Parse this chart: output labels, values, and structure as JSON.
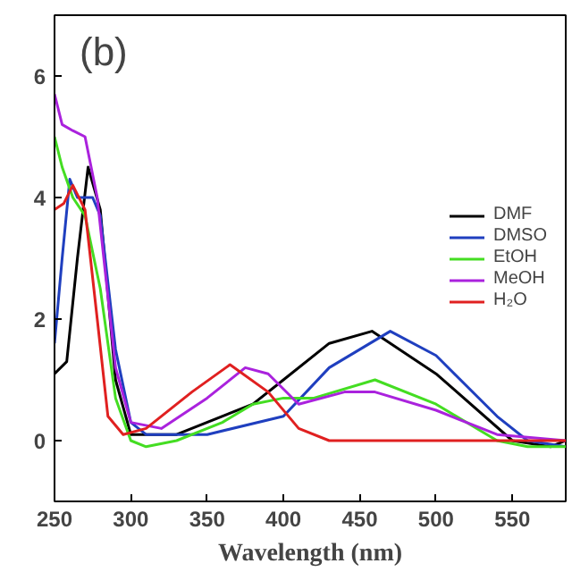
{
  "chart_data": {
    "type": "line",
    "xlabel": "Wavelength (nm)",
    "annotations": [
      "(b)"
    ],
    "xlim": [
      250,
      585
    ],
    "ylim": [
      -1,
      7
    ],
    "xticks": [
      250,
      300,
      350,
      400,
      450,
      500,
      550
    ],
    "yticks": [
      0,
      2,
      4,
      6
    ],
    "grid": false,
    "legend": "right",
    "series": [
      {
        "name": "DMF",
        "color": "#000000",
        "x": [
          250,
          258,
          265,
          272,
          280,
          290,
          300,
          330,
          380,
          400,
          430,
          458,
          500,
          550,
          575,
          585
        ],
        "values": [
          1.1,
          1.3,
          3.0,
          4.5,
          3.8,
          1.0,
          0.1,
          0.1,
          0.6,
          1.0,
          1.6,
          1.8,
          1.1,
          0.0,
          -0.1,
          0.0
        ]
      },
      {
        "name": "DMSO",
        "color": "#1f3fbf",
        "x": [
          250,
          255,
          260,
          265,
          275,
          280,
          290,
          300,
          310,
          350,
          400,
          430,
          470,
          500,
          540,
          560,
          585
        ],
        "values": [
          1.6,
          3.0,
          4.3,
          4.0,
          4.0,
          3.7,
          1.5,
          0.3,
          0.1,
          0.1,
          0.4,
          1.2,
          1.8,
          1.4,
          0.4,
          0.0,
          -0.1
        ]
      },
      {
        "name": "EtOH",
        "color": "#44dd22",
        "x": [
          250,
          255,
          262,
          270,
          280,
          290,
          300,
          310,
          330,
          360,
          380,
          400,
          420,
          460,
          500,
          540,
          560,
          585
        ],
        "values": [
          5.0,
          4.5,
          4.0,
          3.7,
          2.5,
          0.7,
          0.0,
          -0.1,
          0.0,
          0.3,
          0.6,
          0.7,
          0.7,
          1.0,
          0.6,
          0.0,
          -0.1,
          -0.1
        ]
      },
      {
        "name": "MeOH",
        "color": "#aa22dd",
        "x": [
          250,
          255,
          262,
          270,
          278,
          290,
          300,
          320,
          350,
          375,
          390,
          410,
          440,
          460,
          500,
          540,
          585
        ],
        "values": [
          5.7,
          5.2,
          5.1,
          5.0,
          4.0,
          1.2,
          0.3,
          0.2,
          0.7,
          1.2,
          1.1,
          0.6,
          0.8,
          0.8,
          0.5,
          0.1,
          0.0
        ]
      },
      {
        "name": "H₂O",
        "color": "#e02020",
        "x": [
          250,
          256,
          262,
          270,
          278,
          285,
          295,
          310,
          340,
          365,
          390,
          410,
          430,
          585
        ],
        "values": [
          3.8,
          3.9,
          4.2,
          3.8,
          2.0,
          0.4,
          0.1,
          0.2,
          0.8,
          1.25,
          0.8,
          0.2,
          0.0,
          0.0
        ]
      }
    ]
  }
}
